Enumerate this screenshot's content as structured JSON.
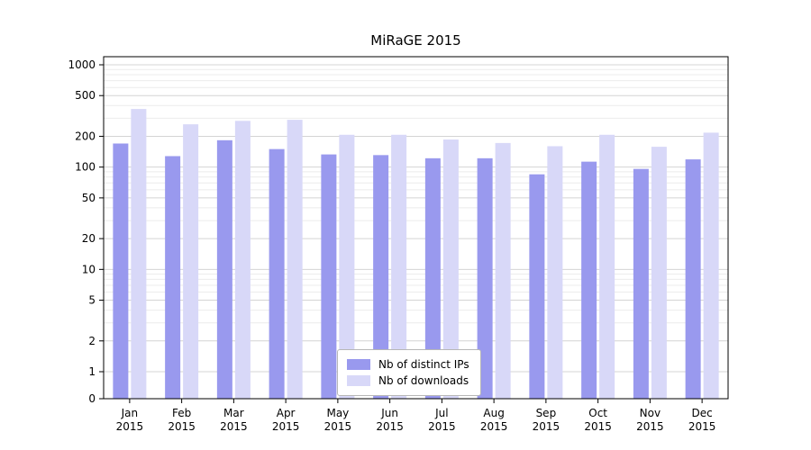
{
  "title": "MiRaGE 2015",
  "legend": {
    "items": [
      {
        "label": "Nb of distinct IPs",
        "color": "#9999ee"
      },
      {
        "label": "Nb of downloads",
        "color": "#d8d8f8"
      }
    ]
  },
  "chart_data": {
    "type": "bar",
    "title": "MiRaGE 2015",
    "categories": [
      "Jan",
      "Feb",
      "Mar",
      "Apr",
      "May",
      "Jun",
      "Jul",
      "Aug",
      "Sep",
      "Oct",
      "Nov",
      "Dec"
    ],
    "year": "2015",
    "series": [
      {
        "name": "Nb of distinct IPs",
        "color": "#9999ee",
        "values": [
          170,
          128,
          183,
          150,
          133,
          131,
          122,
          122,
          85,
          113,
          96,
          119
        ]
      },
      {
        "name": "Nb of downloads",
        "color": "#d8d8f8",
        "values": [
          370,
          262,
          283,
          290,
          207,
          207,
          186,
          172,
          160,
          207,
          158,
          217
        ]
      }
    ],
    "yscale": "symlog",
    "yticks": [
      0,
      1,
      2,
      5,
      10,
      20,
      50,
      100,
      200,
      500,
      1000
    ],
    "ylim": [
      0,
      1200
    ],
    "grid": true,
    "legend_position": "lower center",
    "xlabel": "",
    "ylabel": ""
  }
}
